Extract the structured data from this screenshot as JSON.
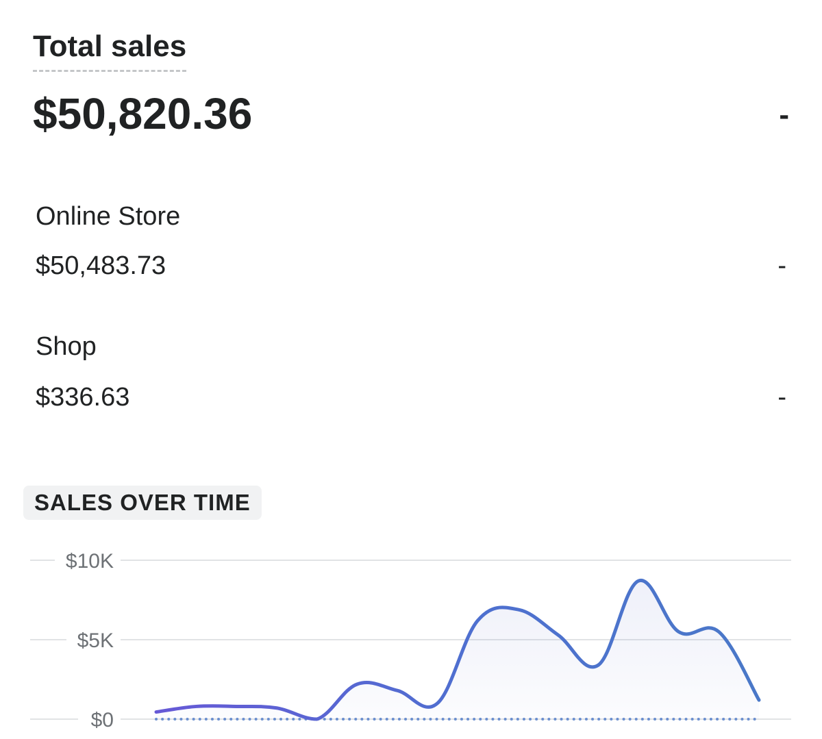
{
  "summary": {
    "title": "Total sales",
    "value": "$50,820.36",
    "change": "-"
  },
  "channels": [
    {
      "name": "Online Store",
      "value": "$50,483.73",
      "change": "-"
    },
    {
      "name": "Shop",
      "value": "$336.63",
      "change": "-"
    }
  ],
  "section": {
    "title": "SALES OVER TIME"
  },
  "chart_data": {
    "type": "area",
    "title": "",
    "xlabel": "",
    "ylabel": "",
    "ylim": [
      0,
      10000
    ],
    "y_ticks": [
      {
        "value": 0,
        "label": "$0"
      },
      {
        "value": 5000,
        "label": "$5K"
      },
      {
        "value": 10000,
        "label": "$10K"
      }
    ],
    "grid": true,
    "x": [
      0,
      1,
      2,
      3,
      4,
      5,
      6,
      7,
      8,
      9,
      10,
      11,
      12,
      13,
      14,
      15,
      16,
      17,
      18,
      19,
      20,
      21,
      22,
      23,
      24,
      25,
      26
    ],
    "series": [
      {
        "color": "#5c6ac4",
        "values": [
          450,
          800,
          800,
          700,
          0,
          2200,
          1800,
          1000,
          6200,
          6900,
          5300,
          3400,
          8700,
          5500,
          5500,
          1200,
          0,
          0,
          0,
          0,
          0,
          0,
          0,
          0,
          0,
          0,
          0
        ]
      }
    ],
    "comparison_series": {
      "color": "#6b8fcf",
      "style": "dotted",
      "values": [
        0,
        0,
        0,
        0,
        0,
        0,
        0,
        0,
        0,
        0,
        0,
        0,
        0,
        0,
        0,
        0
      ]
    }
  }
}
